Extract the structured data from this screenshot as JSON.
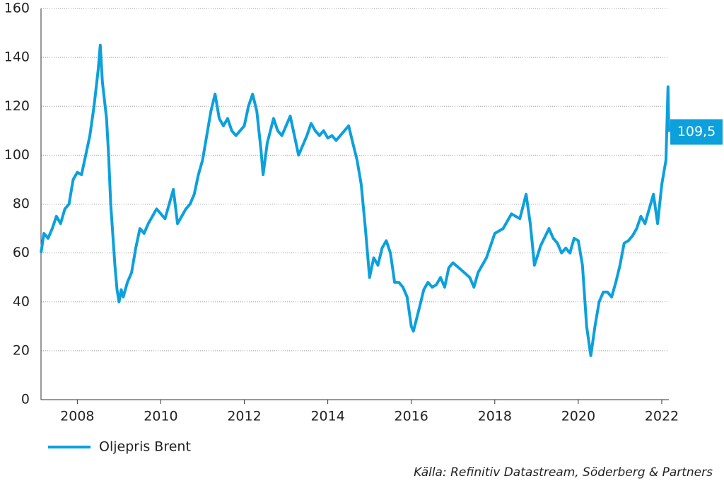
{
  "chart_data": {
    "type": "line",
    "x": [
      2007.13,
      2007.2,
      2007.3,
      2007.4,
      2007.5,
      2007.6,
      2007.7,
      2007.8,
      2007.9,
      2008.0,
      2008.1,
      2008.2,
      2008.3,
      2008.4,
      2008.5,
      2008.55,
      2008.6,
      2008.7,
      2008.75,
      2008.8,
      2008.9,
      2008.95,
      2009.0,
      2009.05,
      2009.1,
      2009.2,
      2009.3,
      2009.4,
      2009.5,
      2009.6,
      2009.7,
      2009.8,
      2009.9,
      2010.0,
      2010.1,
      2010.2,
      2010.3,
      2010.4,
      2010.5,
      2010.6,
      2010.7,
      2010.8,
      2010.9,
      2011.0,
      2011.1,
      2011.2,
      2011.3,
      2011.4,
      2011.5,
      2011.6,
      2011.7,
      2011.8,
      2011.9,
      2012.0,
      2012.1,
      2012.2,
      2012.3,
      2012.4,
      2012.45,
      2012.55,
      2012.7,
      2012.8,
      2012.9,
      2013.0,
      2013.1,
      2013.2,
      2013.3,
      2013.4,
      2013.5,
      2013.6,
      2013.7,
      2013.8,
      2013.9,
      2014.0,
      2014.1,
      2014.2,
      2014.3,
      2014.4,
      2014.5,
      2014.6,
      2014.7,
      2014.8,
      2014.9,
      2015.0,
      2015.1,
      2015.2,
      2015.3,
      2015.4,
      2015.5,
      2015.6,
      2015.7,
      2015.8,
      2015.9,
      2016.0,
      2016.05,
      2016.2,
      2016.3,
      2016.4,
      2016.5,
      2016.6,
      2016.7,
      2016.8,
      2016.9,
      2017.0,
      2017.2,
      2017.4,
      2017.5,
      2017.6,
      2017.8,
      2017.9,
      2018.0,
      2018.2,
      2018.4,
      2018.6,
      2018.75,
      2018.85,
      2018.95,
      2019.1,
      2019.3,
      2019.4,
      2019.5,
      2019.6,
      2019.7,
      2019.8,
      2019.9,
      2020.0,
      2020.1,
      2020.2,
      2020.3,
      2020.4,
      2020.5,
      2020.6,
      2020.7,
      2020.8,
      2020.9,
      2021.0,
      2021.1,
      2021.2,
      2021.3,
      2021.4,
      2021.5,
      2021.6,
      2021.7,
      2021.8,
      2021.9,
      2022.0,
      2022.1,
      2022.15,
      2022.17
    ],
    "series": [
      {
        "name": "Oljepris Brent",
        "color": "#0ca0dc",
        "values": [
          60,
          68,
          66,
          70,
          75,
          72,
          78,
          80,
          90,
          93,
          92,
          100,
          108,
          120,
          135,
          145,
          130,
          115,
          100,
          80,
          55,
          45,
          40,
          45,
          42,
          48,
          52,
          62,
          70,
          68,
          72,
          75,
          78,
          76,
          74,
          80,
          86,
          72,
          75,
          78,
          80,
          84,
          92,
          98,
          108,
          118,
          125,
          115,
          112,
          115,
          110,
          108,
          110,
          112,
          120,
          125,
          118,
          102,
          92,
          105,
          115,
          110,
          108,
          112,
          116,
          108,
          100,
          104,
          108,
          113,
          110,
          108,
          110,
          107,
          108,
          106,
          108,
          110,
          112,
          105,
          98,
          88,
          70,
          50,
          58,
          55,
          62,
          65,
          60,
          48,
          48,
          46,
          42,
          30,
          28,
          38,
          45,
          48,
          46,
          47,
          50,
          46,
          54,
          56,
          53,
          50,
          46,
          52,
          58,
          63,
          68,
          70,
          76,
          74,
          84,
          72,
          55,
          63,
          70,
          66,
          64,
          60,
          62,
          60,
          66,
          65,
          55,
          30,
          18,
          30,
          40,
          44,
          44,
          42,
          48,
          55,
          64,
          65,
          67,
          70,
          75,
          72,
          78,
          84,
          72,
          88,
          98,
          128,
          109.5
        ]
      }
    ],
    "xlim": [
      2007.13,
      2022.17
    ],
    "ylim": [
      0,
      160
    ],
    "xticks": [
      2008,
      2010,
      2012,
      2014,
      2016,
      2018,
      2020,
      2022
    ],
    "yticks": [
      0,
      20,
      40,
      60,
      80,
      100,
      120,
      140,
      160
    ],
    "grid": true,
    "annotations": [
      {
        "y": 109.5,
        "label": "109,5"
      }
    ],
    "source": "Källa: Refinitiv Datastream, Söderberg & Partners"
  }
}
